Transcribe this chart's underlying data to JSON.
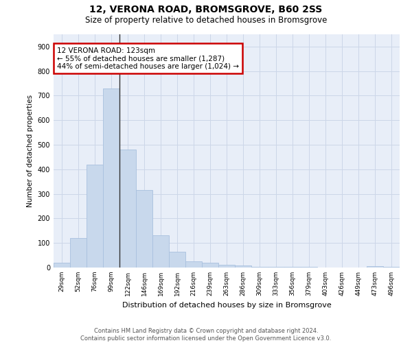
{
  "title": "12, VERONA ROAD, BROMSGROVE, B60 2SS",
  "subtitle": "Size of property relative to detached houses in Bromsgrove",
  "xlabel": "Distribution of detached houses by size in Bromsgrove",
  "ylabel": "Number of detached properties",
  "categories": [
    "29sqm",
    "52sqm",
    "76sqm",
    "99sqm",
    "122sqm",
    "146sqm",
    "169sqm",
    "192sqm",
    "216sqm",
    "239sqm",
    "263sqm",
    "286sqm",
    "309sqm",
    "333sqm",
    "356sqm",
    "379sqm",
    "403sqm",
    "426sqm",
    "449sqm",
    "473sqm",
    "496sqm"
  ],
  "values": [
    20,
    120,
    420,
    730,
    480,
    315,
    130,
    65,
    25,
    20,
    10,
    8,
    4,
    3,
    3,
    2,
    1,
    1,
    0,
    5,
    2
  ],
  "bar_color": "#c8d8ec",
  "bar_edge_color": "#a8c0de",
  "property_line_color": "#333333",
  "annotation_text": "12 VERONA ROAD: 123sqm\n← 55% of detached houses are smaller (1,287)\n44% of semi-detached houses are larger (1,024) →",
  "annotation_box_color": "#ffffff",
  "annotation_box_edge_color": "#cc0000",
  "grid_color": "#ccd6e8",
  "background_color": "#e8eef8",
  "ylim": [
    0,
    950
  ],
  "yticks": [
    0,
    100,
    200,
    300,
    400,
    500,
    600,
    700,
    800,
    900
  ],
  "footer": "Contains HM Land Registry data © Crown copyright and database right 2024.\nContains public sector information licensed under the Open Government Licence v3.0."
}
